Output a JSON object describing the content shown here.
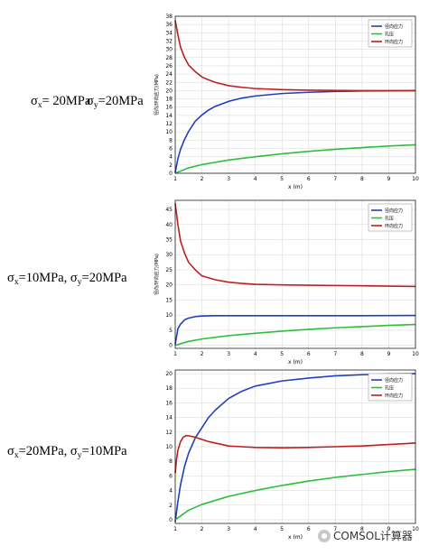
{
  "rows": [
    {
      "sx": "20MPa",
      "sy": "20MPa"
    },
    {
      "sx": "10MPa",
      "sy": "20MPa"
    },
    {
      "sx": "20MPa",
      "sy": "10MPa"
    }
  ],
  "symbols": {
    "sigma": "σ",
    "x": "x",
    "y": "y",
    "eq": "=",
    "sep": ", "
  },
  "watermark": "COMSOL计算器",
  "chart_data": [
    {
      "type": "line",
      "xlabel": "x (m)",
      "ylabel": "径向/环向应力(MPa)",
      "xlim": [
        1,
        10
      ],
      "ylim": [
        0,
        38
      ],
      "xticks": [
        1,
        2,
        3,
        4,
        5,
        6,
        7,
        8,
        9,
        10
      ],
      "yticks": [
        0,
        2,
        4,
        6,
        8,
        10,
        12,
        14,
        16,
        18,
        20,
        22,
        24,
        26,
        28,
        30,
        32,
        34,
        36,
        38
      ],
      "grid": true,
      "legend": "top-right",
      "series": [
        {
          "name": "径向应力",
          "color": "#1f3fbf",
          "x": [
            1,
            1.1,
            1.2,
            1.35,
            1.5,
            1.75,
            2,
            2.25,
            2.5,
            3,
            3.5,
            4,
            5,
            6,
            7,
            8,
            9,
            10
          ],
          "y": [
            0.2,
            3.5,
            5.8,
            8.2,
            10.1,
            12.6,
            14.1,
            15.3,
            16.2,
            17.4,
            18.2,
            18.7,
            19.3,
            19.6,
            19.8,
            19.9,
            19.95,
            20
          ]
        },
        {
          "name": "孔压",
          "color": "#2dbf3a",
          "x": [
            1,
            1.5,
            2,
            3,
            4,
            5,
            6,
            7,
            8,
            9,
            10
          ],
          "y": [
            0,
            1.3,
            2.1,
            3.2,
            4.0,
            4.7,
            5.3,
            5.8,
            6.2,
            6.6,
            6.9
          ]
        },
        {
          "name": "环向应力",
          "color": "#bf1f1f",
          "x": [
            1,
            1.1,
            1.2,
            1.35,
            1.5,
            1.75,
            2,
            2.25,
            2.5,
            3,
            3.5,
            4,
            5,
            6,
            7,
            8,
            9,
            10
          ],
          "y": [
            37,
            33.5,
            30.5,
            28,
            26.2,
            24.6,
            23.3,
            22.6,
            22,
            21.2,
            20.8,
            20.5,
            20.25,
            20.1,
            20.05,
            20,
            20,
            20
          ]
        }
      ]
    },
    {
      "type": "line",
      "xlabel": "x (m)",
      "ylabel": "径向/环向应力(MPa)",
      "xlim": [
        1,
        10
      ],
      "ylim": [
        -1,
        48
      ],
      "xticks": [
        1,
        2,
        3,
        4,
        5,
        6,
        7,
        8,
        9,
        10
      ],
      "yticks": [
        0,
        5,
        10,
        15,
        20,
        25,
        30,
        35,
        40,
        45
      ],
      "grid": true,
      "legend": "top-right",
      "series": [
        {
          "name": "径向应力",
          "color": "#1f3fbf",
          "x": [
            1,
            1.1,
            1.2,
            1.35,
            1.5,
            1.75,
            2,
            2.5,
            3,
            4,
            5,
            6,
            7,
            8,
            9,
            10
          ],
          "y": [
            0.3,
            5.5,
            7,
            8.4,
            9,
            9.5,
            9.7,
            9.8,
            9.8,
            9.8,
            9.8,
            9.8,
            9.8,
            9.8,
            9.85,
            9.9
          ]
        },
        {
          "name": "孔压",
          "color": "#2dbf3a",
          "x": [
            1,
            1.5,
            2,
            3,
            4,
            5,
            6,
            7,
            8,
            9,
            10
          ],
          "y": [
            0,
            1.3,
            2.1,
            3.2,
            4.0,
            4.7,
            5.3,
            5.8,
            6.2,
            6.6,
            6.9
          ]
        },
        {
          "name": "环向应力",
          "color": "#bf1f1f",
          "x": [
            1,
            1.1,
            1.2,
            1.35,
            1.5,
            1.75,
            2,
            2.5,
            3,
            3.5,
            4,
            5,
            6,
            7,
            8,
            9,
            10
          ],
          "y": [
            47,
            40,
            34.5,
            30.5,
            27.5,
            25,
            23,
            21.7,
            20.9,
            20.5,
            20.2,
            20,
            19.9,
            19.8,
            19.7,
            19.6,
            19.5
          ]
        }
      ]
    },
    {
      "type": "line",
      "xlabel": "x (m)",
      "ylabel": "",
      "xlim": [
        1,
        10
      ],
      "ylim": [
        -0.5,
        20.5
      ],
      "xticks": [
        1,
        2,
        3,
        4,
        5,
        6,
        7,
        8,
        9,
        10
      ],
      "yticks": [
        0,
        2,
        4,
        6,
        8,
        10,
        12,
        14,
        16,
        18,
        20
      ],
      "grid": true,
      "legend": "top-right",
      "series": [
        {
          "name": "径向应力",
          "color": "#1f3fbf",
          "x": [
            1,
            1.1,
            1.2,
            1.35,
            1.5,
            1.75,
            2,
            2.25,
            2.5,
            3,
            3.5,
            4,
            5,
            6,
            7,
            8,
            9,
            10
          ],
          "y": [
            -0.3,
            2.5,
            4.8,
            7.3,
            9.1,
            11.2,
            12.6,
            14,
            15,
            16.6,
            17.6,
            18.3,
            19,
            19.4,
            19.7,
            19.85,
            19.95,
            20
          ]
        },
        {
          "name": "孔压",
          "color": "#2dbf3a",
          "x": [
            1,
            1.5,
            2,
            3,
            4,
            5,
            6,
            7,
            8,
            9,
            10
          ],
          "y": [
            0,
            1.3,
            2.1,
            3.2,
            4.0,
            4.7,
            5.3,
            5.8,
            6.2,
            6.6,
            6.9
          ]
        },
        {
          "name": "环向应力",
          "color": "#bf1f1f",
          "x": [
            1,
            1.05,
            1.1,
            1.2,
            1.3,
            1.4,
            1.5,
            1.75,
            2,
            2.25,
            2.5,
            3,
            4,
            5,
            6,
            7,
            8,
            9,
            10
          ],
          "y": [
            6.4,
            8.3,
            9.5,
            10.7,
            11.3,
            11.5,
            11.5,
            11.3,
            11,
            10.7,
            10.5,
            10.1,
            9.9,
            9.85,
            9.9,
            10,
            10.1,
            10.3,
            10.5
          ]
        }
      ]
    }
  ]
}
